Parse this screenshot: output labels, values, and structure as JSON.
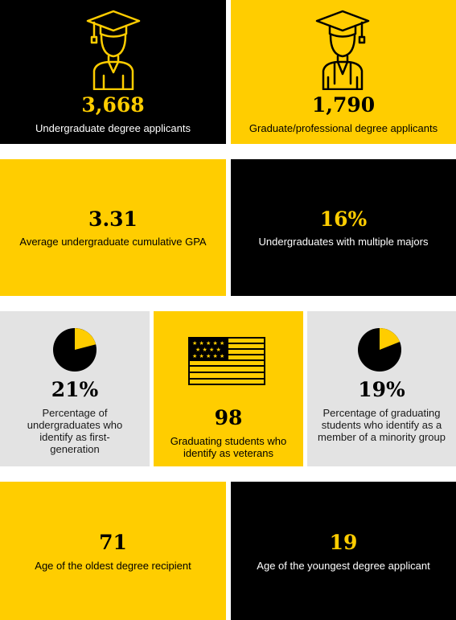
{
  "stats": {
    "undergrad_applicants": {
      "value": "3,668",
      "label": "Undergraduate degree applicants",
      "icon": "graduate-icon"
    },
    "grad_applicants": {
      "value": "1,790",
      "label": "Graduate/professional degree applicants",
      "icon": "graduate-hood-icon"
    },
    "avg_gpa": {
      "value": "3.31",
      "label": "Average undergraduate cumulative GPA"
    },
    "multiple_majors": {
      "value": "16%",
      "label": "Undergraduates with multiple majors"
    },
    "first_generation": {
      "value": "21%",
      "label": "Percentage of undergraduates who identify as first-generation",
      "icon": "pie-chart-icon",
      "fraction": 0.21
    },
    "veterans": {
      "value": "98",
      "label": "Graduating students who identify as veterans",
      "icon": "flag-icon"
    },
    "minority": {
      "value": "19%",
      "label": "Percentage of graduating students who identify as a member of a minority group",
      "icon": "pie-chart-icon",
      "fraction": 0.19
    },
    "oldest_recipient": {
      "value": "71",
      "label": "Age of the oldest degree recipient"
    },
    "youngest_applicant": {
      "value": "19",
      "label": "Age of the youngest degree applicant"
    }
  },
  "colors": {
    "black": "#000000",
    "yellow": "#ffcd00",
    "gray": "#e3e3e3",
    "white": "#ffffff"
  }
}
